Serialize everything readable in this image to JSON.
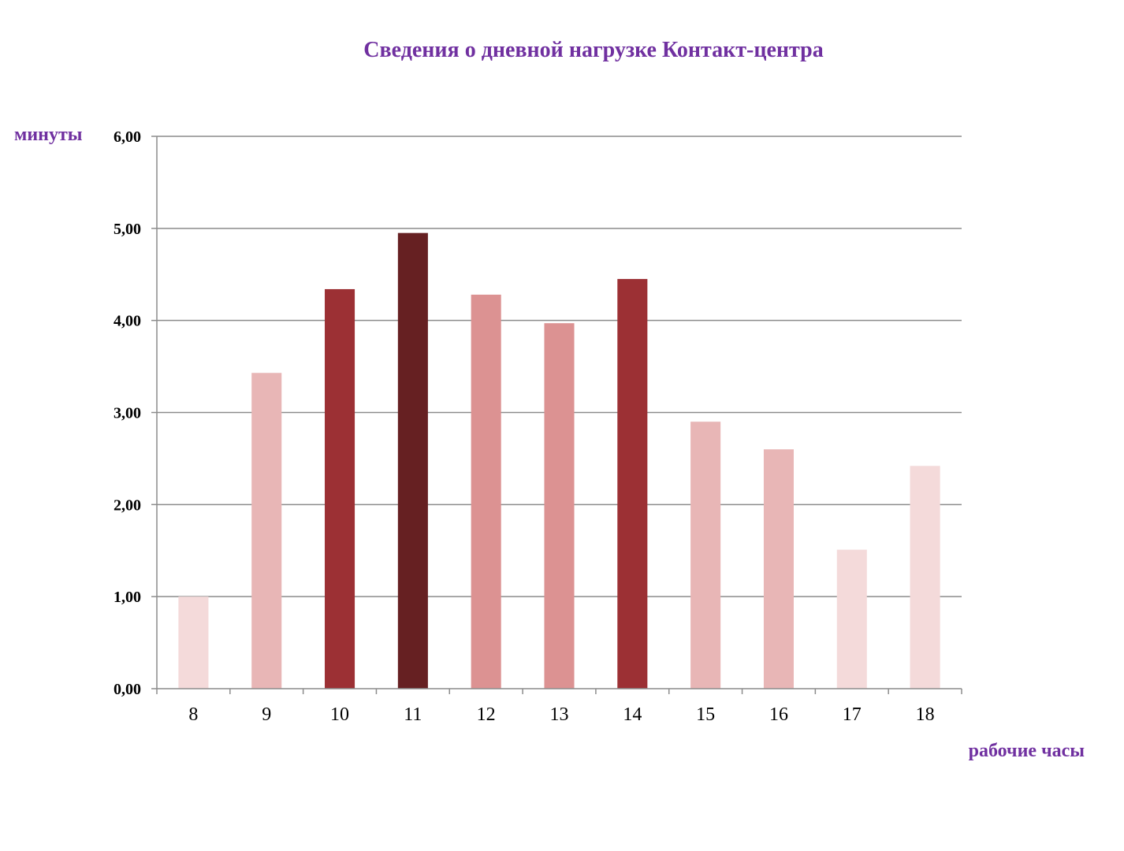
{
  "chart_data": {
    "type": "bar",
    "title": "Сведения о дневной нагрузке Контакт-центра",
    "xlabel": "рабочие часы",
    "ylabel": "минуты",
    "categories": [
      "8",
      "9",
      "10",
      "11",
      "12",
      "13",
      "14",
      "15",
      "16",
      "17",
      "18"
    ],
    "values": [
      1.0,
      3.43,
      4.34,
      4.95,
      4.28,
      3.97,
      4.45,
      2.9,
      2.6,
      1.51,
      2.42
    ],
    "bar_colors": [
      "#f4dada",
      "#e8b6b6",
      "#9c3034",
      "#662022",
      "#dc9292",
      "#dc9292",
      "#9c3034",
      "#e8b6b6",
      "#e8b6b6",
      "#f4dada",
      "#f4dada"
    ],
    "ylim": [
      0,
      6
    ],
    "y_ticks": [
      "0,00",
      "1,00",
      "2,00",
      "3,00",
      "4,00",
      "5,00",
      "6,00"
    ],
    "grid": true,
    "legend": "none"
  }
}
